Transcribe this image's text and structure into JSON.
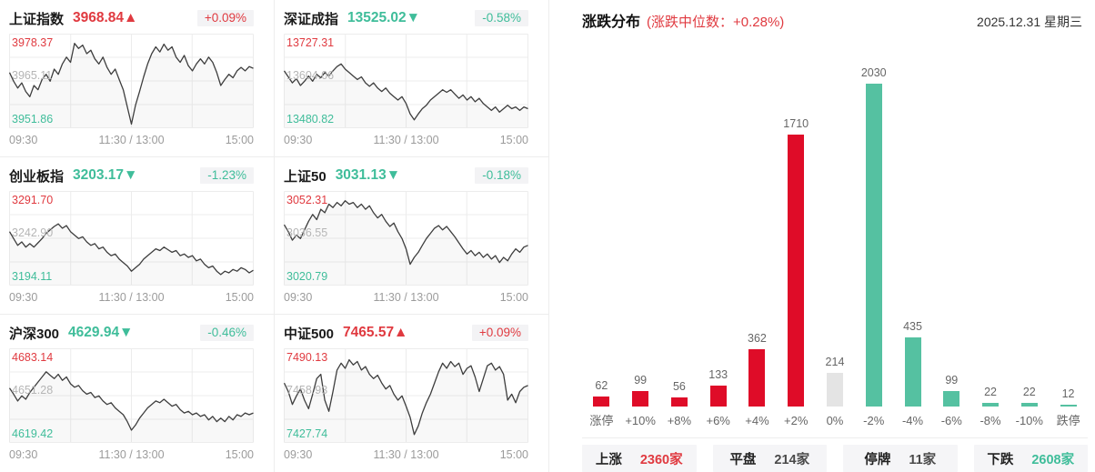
{
  "palette": {
    "red_bar": "#df0c28",
    "red_text": "#e03a40",
    "green_bar": "#55c1a1",
    "green_text": "#3fbd9a",
    "flat_bar": "#e4e4e4",
    "dark_text": "#4a4a4a",
    "line": "#3d3d3d",
    "grid": "#ececec",
    "mid_label": "#b5b5b5"
  },
  "icons": {
    "up_arrow": "▲",
    "down_arrow": "▼"
  },
  "panel": {
    "date": "2025.12.31 星期三",
    "summary": [
      {
        "label": "上涨",
        "value": "2360家",
        "color": "red"
      },
      {
        "label": "平盘",
        "value": "214家",
        "color": "dark"
      },
      {
        "label": "停牌",
        "value": "11家",
        "color": "dark"
      },
      {
        "label": "下跌",
        "value": "2608家",
        "color": "green"
      }
    ]
  },
  "chart_data": [
    {
      "type": "bar",
      "title": "涨跌分布",
      "subtitle": "(涨跌中位数：+0.28%)",
      "categories": [
        "涨停",
        "+10%",
        "+8%",
        "+6%",
        "+4%",
        "+2%",
        "0%",
        "-2%",
        "-4%",
        "-6%",
        "-8%",
        "-10%",
        "跌停"
      ],
      "values": [
        62,
        99,
        56,
        133,
        362,
        1710,
        214,
        2030,
        435,
        99,
        22,
        22,
        12
      ],
      "bar_colors": [
        "red",
        "red",
        "red",
        "red",
        "red",
        "red",
        "flat",
        "green",
        "green",
        "green",
        "green",
        "green",
        "green"
      ],
      "ylim": [
        0,
        2030
      ],
      "grid": false,
      "value_labels": true,
      "legend": "none"
    },
    {
      "type": "line",
      "title": "上证指数",
      "value": "3968.84",
      "dir": "up",
      "change": "+0.09%",
      "high": "3978.37",
      "mid": "3965.11",
      "low": "3951.86",
      "x_ticks": [
        "09:30",
        "11:30 / 13:00",
        "15:00"
      ],
      "y_normalized_from_high": [
        0.4,
        0.5,
        0.58,
        0.52,
        0.62,
        0.68,
        0.55,
        0.6,
        0.48,
        0.42,
        0.5,
        0.36,
        0.42,
        0.3,
        0.22,
        0.28,
        0.06,
        0.12,
        0.08,
        0.18,
        0.14,
        0.24,
        0.3,
        0.22,
        0.34,
        0.42,
        0.36,
        0.48,
        0.6,
        0.8,
        1.0,
        0.78,
        0.62,
        0.45,
        0.3,
        0.18,
        0.1,
        0.16,
        0.07,
        0.14,
        0.1,
        0.22,
        0.28,
        0.2,
        0.32,
        0.38,
        0.3,
        0.24,
        0.3,
        0.22,
        0.28,
        0.4,
        0.55,
        0.48,
        0.42,
        0.46,
        0.38,
        0.34,
        0.38,
        0.33,
        0.35
      ]
    },
    {
      "type": "line",
      "title": "深证成指",
      "value": "13525.02",
      "dir": "down",
      "change": "-0.58%",
      "high": "13727.31",
      "mid": "13604.06",
      "low": "13480.82",
      "x_ticks": [
        "09:30",
        "11:30 / 13:00",
        "15:00"
      ],
      "y_normalized_from_high": [
        0.38,
        0.45,
        0.52,
        0.47,
        0.55,
        0.5,
        0.44,
        0.5,
        0.42,
        0.46,
        0.4,
        0.44,
        0.38,
        0.33,
        0.3,
        0.36,
        0.4,
        0.44,
        0.48,
        0.45,
        0.52,
        0.56,
        0.52,
        0.58,
        0.62,
        0.58,
        0.64,
        0.68,
        0.72,
        0.68,
        0.76,
        0.88,
        0.95,
        0.88,
        0.82,
        0.78,
        0.72,
        0.68,
        0.64,
        0.6,
        0.63,
        0.6,
        0.65,
        0.7,
        0.66,
        0.72,
        0.68,
        0.74,
        0.7,
        0.76,
        0.8,
        0.84,
        0.8,
        0.86,
        0.82,
        0.78,
        0.82,
        0.8,
        0.84,
        0.8,
        0.82
      ]
    },
    {
      "type": "line",
      "title": "创业板指",
      "value": "3203.17",
      "dir": "down",
      "change": "-1.23%",
      "high": "3291.70",
      "mid": "3242.90",
      "low": "3194.11",
      "x_ticks": [
        "09:30",
        "11:30 / 13:00",
        "15:00"
      ],
      "y_normalized_from_high": [
        0.42,
        0.5,
        0.58,
        0.54,
        0.6,
        0.56,
        0.6,
        0.55,
        0.5,
        0.44,
        0.4,
        0.36,
        0.33,
        0.38,
        0.35,
        0.42,
        0.46,
        0.5,
        0.48,
        0.54,
        0.58,
        0.56,
        0.62,
        0.6,
        0.66,
        0.7,
        0.68,
        0.74,
        0.78,
        0.82,
        0.88,
        0.84,
        0.8,
        0.74,
        0.7,
        0.66,
        0.62,
        0.64,
        0.6,
        0.63,
        0.66,
        0.64,
        0.7,
        0.68,
        0.72,
        0.7,
        0.76,
        0.74,
        0.8,
        0.84,
        0.82,
        0.88,
        0.92,
        0.88,
        0.9,
        0.86,
        0.88,
        0.84,
        0.86,
        0.9,
        0.87
      ]
    },
    {
      "type": "line",
      "title": "上证50",
      "value": "3031.13",
      "dir": "down",
      "change": "-0.18%",
      "high": "3052.31",
      "mid": "3036.55",
      "low": "3020.79",
      "x_ticks": [
        "09:30",
        "11:30 / 13:00",
        "15:00"
      ],
      "y_normalized_from_high": [
        0.34,
        0.42,
        0.52,
        0.46,
        0.5,
        0.4,
        0.3,
        0.22,
        0.28,
        0.16,
        0.2,
        0.1,
        0.14,
        0.08,
        0.12,
        0.06,
        0.1,
        0.08,
        0.14,
        0.1,
        0.16,
        0.12,
        0.2,
        0.26,
        0.22,
        0.3,
        0.36,
        0.32,
        0.42,
        0.5,
        0.62,
        0.8,
        0.72,
        0.66,
        0.58,
        0.5,
        0.44,
        0.38,
        0.35,
        0.4,
        0.36,
        0.42,
        0.48,
        0.55,
        0.62,
        0.68,
        0.64,
        0.7,
        0.66,
        0.72,
        0.68,
        0.74,
        0.7,
        0.78,
        0.72,
        0.76,
        0.68,
        0.62,
        0.66,
        0.6,
        0.58
      ]
    },
    {
      "type": "line",
      "title": "沪深300",
      "value": "4629.94",
      "dir": "down",
      "change": "-0.46%",
      "high": "4683.14",
      "mid": "4651.28",
      "low": "4619.42",
      "x_ticks": [
        "09:30",
        "11:30 / 13:00",
        "15:00"
      ],
      "y_normalized_from_high": [
        0.41,
        0.48,
        0.56,
        0.5,
        0.54,
        0.46,
        0.4,
        0.34,
        0.28,
        0.22,
        0.26,
        0.3,
        0.25,
        0.32,
        0.28,
        0.36,
        0.4,
        0.38,
        0.44,
        0.48,
        0.46,
        0.52,
        0.5,
        0.56,
        0.6,
        0.58,
        0.64,
        0.68,
        0.72,
        0.8,
        0.9,
        0.84,
        0.76,
        0.7,
        0.64,
        0.6,
        0.56,
        0.58,
        0.54,
        0.58,
        0.62,
        0.6,
        0.66,
        0.7,
        0.68,
        0.72,
        0.7,
        0.74,
        0.72,
        0.78,
        0.74,
        0.8,
        0.76,
        0.8,
        0.74,
        0.78,
        0.72,
        0.74,
        0.7,
        0.72,
        0.7
      ]
    },
    {
      "type": "line",
      "title": "中证500",
      "value": "7465.57",
      "dir": "up",
      "change": "+0.09%",
      "high": "7490.13",
      "mid": "7458.93",
      "low": "7427.74",
      "x_ticks": [
        "09:30",
        "11:30 / 13:00",
        "15:00"
      ],
      "y_normalized_from_high": [
        0.35,
        0.45,
        0.6,
        0.5,
        0.42,
        0.55,
        0.65,
        0.48,
        0.3,
        0.25,
        0.55,
        0.68,
        0.45,
        0.2,
        0.12,
        0.18,
        0.08,
        0.14,
        0.1,
        0.2,
        0.16,
        0.25,
        0.3,
        0.26,
        0.35,
        0.42,
        0.38,
        0.48,
        0.55,
        0.5,
        0.62,
        0.75,
        0.95,
        0.85,
        0.7,
        0.58,
        0.48,
        0.35,
        0.22,
        0.12,
        0.18,
        0.1,
        0.16,
        0.12,
        0.25,
        0.18,
        0.15,
        0.28,
        0.45,
        0.3,
        0.15,
        0.12,
        0.2,
        0.16,
        0.25,
        0.55,
        0.48,
        0.58,
        0.45,
        0.4,
        0.38
      ]
    }
  ]
}
